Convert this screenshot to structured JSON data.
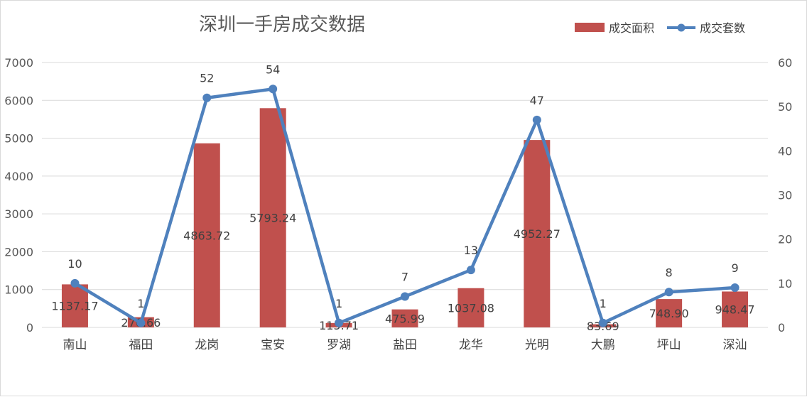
{
  "chart_data": {
    "type": "bar+line",
    "title": "深圳一手房成交数据",
    "categories": [
      "南山",
      "福田",
      "龙岗",
      "宝安",
      "罗湖",
      "盐田",
      "龙华",
      "光明",
      "大鹏",
      "坪山",
      "深汕"
    ],
    "series": [
      {
        "name": "成交面积",
        "type": "bar",
        "axis": "left",
        "color": "#c0504d",
        "values": [
          1137.17,
          270.66,
          4863.72,
          5793.24,
          115.71,
          475.99,
          1037.08,
          4952.27,
          83.69,
          748.9,
          948.47
        ],
        "labels": [
          "1137.17",
          "270.66",
          "4863.72",
          "5793.24",
          "115.71",
          "475.99",
          "1037.08",
          "4952.27",
          "83.69",
          "748.90",
          "948.47"
        ]
      },
      {
        "name": "成交套数",
        "type": "line",
        "axis": "right",
        "color": "#4f81bd",
        "values": [
          10,
          1,
          52,
          54,
          1,
          7,
          13,
          47,
          1,
          8,
          9
        ],
        "labels": [
          "10",
          "1",
          "52",
          "54",
          "1",
          "7",
          "13",
          "47",
          "1",
          "8",
          "9"
        ]
      }
    ],
    "y_left": {
      "min": 0,
      "max": 7000,
      "ticks": [
        "0",
        "1000",
        "2000",
        "3000",
        "4000",
        "5000",
        "6000",
        "7000"
      ]
    },
    "y_right": {
      "min": 0,
      "max": 60,
      "ticks": [
        "0",
        "10",
        "20",
        "30",
        "40",
        "50",
        "60"
      ]
    },
    "grid": true,
    "legend_position": "top-right"
  }
}
